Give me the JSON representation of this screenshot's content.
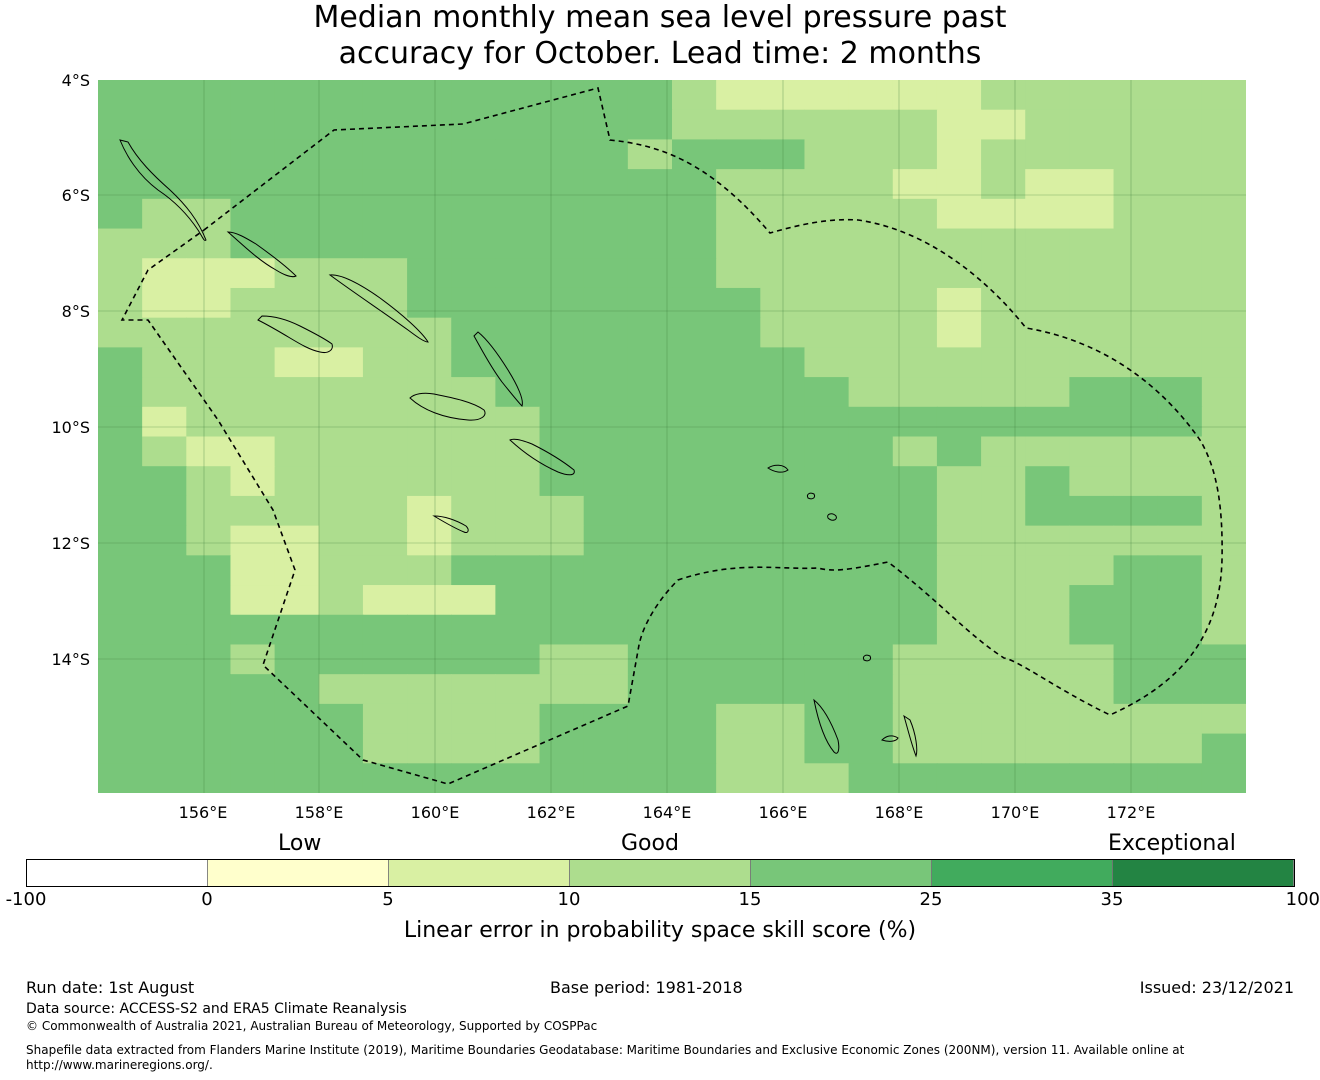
{
  "title_lines": [
    "Median monthly mean sea level pressure past",
    "accuracy for October. Lead time: 2 months"
  ],
  "map": {
    "lat_labels": [
      "4°S",
      "6°S",
      "8°S",
      "10°S",
      "12°S",
      "14°S"
    ],
    "lon_labels": [
      "156°E",
      "158°E",
      "160°E",
      "162°E",
      "164°E",
      "166°E",
      "168°E",
      "170°E",
      "172°E"
    ],
    "colors": {
      "0": "#ffffcc",
      "5": "#d9f0a3",
      "10": "#addd8e",
      "15": "#78c679",
      "25": "#41ab5d",
      "35": "#238443"
    },
    "skill_grid": [
      "33333333333332111111222222",
      "33333333333332222221122222",
      "33333333333323332221222222",
      "33333333333333222211211222",
      "32233333333333222221111222",
      "22233333333333222222222222",
      "21112223333333222222222222",
      "21122223333333322221222222",
      "22222222333333322221222222",
      "32221122333333332222222222",
      "32222222233333333222223332",
      "31222222223333333333333332",
      "32112222223333333323222222",
      "33212222223333333332232222",
      "33222221222333333332233332",
      "33211221222333333332222222",
      "33311222333333333332222332",
      "33311211133333333332223332",
      "33333333333333333332223332",
      "33323333332233333322222333",
      "33333222222233333322222333",
      "33333322223333223322222222",
      "33333322223333223322222223",
      "33333333333333222333333333"
    ]
  },
  "colorbar": {
    "category_labels": [
      "Low",
      "Good",
      "Exceptional"
    ],
    "ticks": [
      "-100",
      "0",
      "5",
      "10",
      "15",
      "25",
      "35",
      "100"
    ],
    "segment_colors": [
      "#ffffff",
      "#ffffcc",
      "#d9f0a3",
      "#addd8e",
      "#78c679",
      "#41ab5d",
      "#238443"
    ],
    "title": "Linear error in probability space skill score (%)"
  },
  "footer": {
    "run_date": "Run date: 1st August",
    "base_period": "Base period: 1981-2018",
    "issued": "Issued: 23/12/2021",
    "data_source": "Data source: ACCESS-S2 and ERA5 Climate Reanalysis",
    "copyright": "© Commonwealth of Australia 2021, Australian Bureau of Meteorology, Supported by COSPPac",
    "shapefile_line1": "Shapefile data extracted from Flanders Marine Institute (2019), Maritime Boundaries Geodatabase: Maritime Boundaries and Exclusive Economic Zones (200NM), version 11. Available online at",
    "shapefile_line2": "http://www.marineregions.org/."
  }
}
